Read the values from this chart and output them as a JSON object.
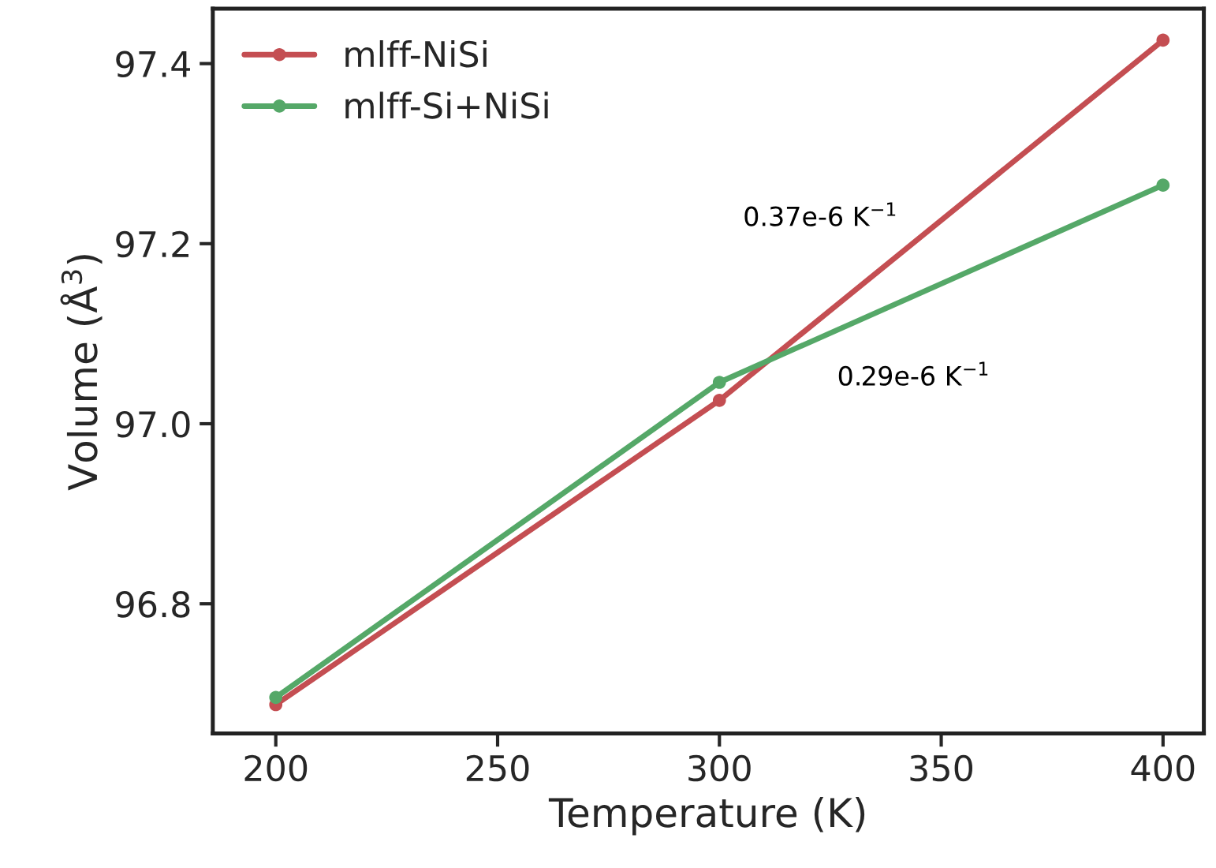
{
  "chart_data": {
    "type": "line",
    "xlabel": "Temperature (K)",
    "ylabel": "Volume (Å$^{3}$)",
    "x": [
      200,
      300,
      400
    ],
    "series": [
      {
        "name": "mlff-NiSi",
        "color": "#c44e52",
        "values": [
          96.688,
          97.026,
          97.426
        ]
      },
      {
        "name": "mlff-Si+NiSi",
        "color": "#55a868",
        "values": [
          96.696,
          97.046,
          97.265
        ]
      }
    ],
    "xlim": [
      185.8,
      409.2
    ],
    "xticks": [
      200,
      250,
      300,
      350,
      400
    ],
    "ylim": [
      96.656,
      97.461
    ],
    "yticks": [
      {
        "value": 96.8,
        "label": "96.8"
      },
      {
        "value": 97.0,
        "label": "97.0"
      },
      {
        "value": 97.2,
        "label": "97.2"
      },
      {
        "value": 97.4,
        "label": "97.4"
      }
    ],
    "annotations": [
      "0.37e-6 K$^{−1}$",
      "0.29e-6 K$^{−1}$"
    ],
    "marker": "circle",
    "line_style": "solid",
    "legend": "top left",
    "grid": false
  }
}
